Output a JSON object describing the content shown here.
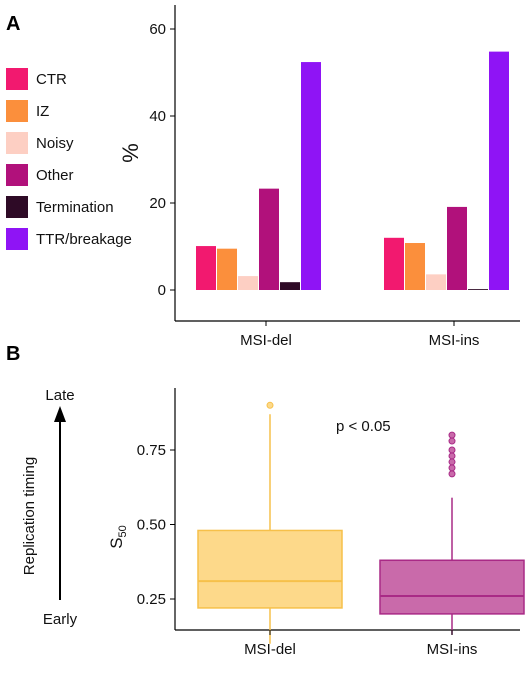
{
  "chart_data": [
    {
      "panel": "A",
      "type": "bar",
      "ylabel": "%",
      "xlabel": "",
      "ylim": [
        0,
        65
      ],
      "yticks": [
        0,
        20,
        40,
        60
      ],
      "categories": [
        "MSI-del",
        "MSI-ins"
      ],
      "series": [
        {
          "name": "CTR",
          "color": "#f2196f",
          "values": [
            10.1,
            12.0
          ]
        },
        {
          "name": "IZ",
          "color": "#fb8f3c",
          "values": [
            9.5,
            10.8
          ]
        },
        {
          "name": "Noisy",
          "color": "#fdcfc3",
          "values": [
            3.2,
            3.6
          ]
        },
        {
          "name": "Other",
          "color": "#b1117b",
          "values": [
            23.3,
            19.1
          ]
        },
        {
          "name": "Termination",
          "color": "#2e0a26",
          "values": [
            1.8,
            0.2
          ]
        },
        {
          "name": "TTR/breakage",
          "color": "#8f14f5",
          "values": [
            52.4,
            54.8
          ]
        }
      ],
      "legend_position": "left"
    },
    {
      "panel": "B",
      "type": "box",
      "ylabel": "S50",
      "ylabel_main": "S",
      "ylabel_sub": "50",
      "ylim": [
        0.05,
        0.95
      ],
      "yticks": [
        0.25,
        0.5,
        0.75
      ],
      "ytick_labels": [
        "0.25",
        "0.50",
        "0.75"
      ],
      "categories": [
        "MSI-del",
        "MSI-ins"
      ],
      "boxes": [
        {
          "name": "MSI-del",
          "fill": "#fdd98a",
          "stroke": "#f6c04a",
          "median_color": "#f6c04a",
          "min": 0.1,
          "q1": 0.22,
          "median": 0.31,
          "q3": 0.48,
          "max": 0.87,
          "outliers": [
            0.9
          ]
        },
        {
          "name": "MSI-ins",
          "fill": "#c96aaa",
          "stroke": "#a92a86",
          "median_color": "#a92a86",
          "min": 0.13,
          "q1": 0.2,
          "median": 0.26,
          "q3": 0.38,
          "max": 0.59,
          "outliers": [
            0.67,
            0.69,
            0.71,
            0.73,
            0.75,
            0.78,
            0.8
          ]
        }
      ],
      "annotation": "p < 0.05",
      "side_axis": {
        "title": "Replication timing",
        "top": "Late",
        "bottom": "Early"
      }
    }
  ],
  "panel_labels": [
    "A",
    "B"
  ]
}
